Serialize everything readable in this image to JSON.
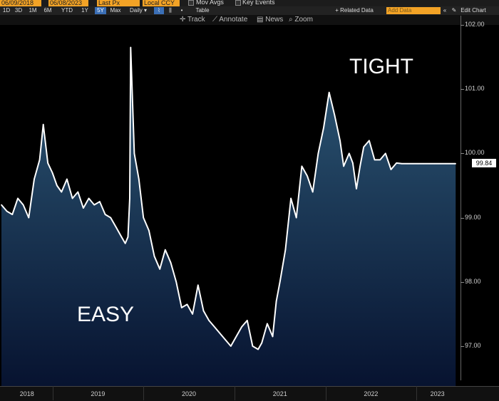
{
  "toolbar": {
    "date_start": "06/09/2018",
    "date_end": "06/08/2023",
    "field_px": "Last Px",
    "field_ccy": "Local CCY",
    "mov_avgs": "Mov Avgs",
    "key_events": "Key Events",
    "periods": [
      "1D",
      "3D",
      "1M",
      "6M",
      "YTD",
      "1Y",
      "5Y",
      "Max"
    ],
    "active_period": "5Y",
    "frequency": "Daily",
    "table": "Table",
    "related_data": "+ Related Data",
    "add_data_placeholder": "Add Data",
    "edit_chart": "Edit Chart",
    "tools": [
      "Track",
      "Annotate",
      "News",
      "Zoom"
    ]
  },
  "annotations": {
    "tight": "TIGHT",
    "easy": "EASY"
  },
  "last_value": "99.84",
  "chart_data": {
    "type": "area",
    "title": "",
    "xlabel": "",
    "ylabel": "",
    "ylim": [
      96.6,
      102.2
    ],
    "yticks": [
      "102.00",
      "101.00",
      "100.00",
      "99.00",
      "98.00",
      "97.00"
    ],
    "xlabels": [
      "2018",
      "2019",
      "2020",
      "2021",
      "2022",
      "2023"
    ],
    "colors": {
      "line": "#ffffff",
      "fill_top": "#2e5a78",
      "fill_bottom": "#071330",
      "background": "#000000"
    },
    "x": [
      2018.44,
      2018.5,
      2018.56,
      2018.62,
      2018.68,
      2018.74,
      2018.8,
      2018.86,
      2018.9,
      2018.95,
      2019.0,
      2019.05,
      2019.1,
      2019.16,
      2019.22,
      2019.28,
      2019.34,
      2019.4,
      2019.46,
      2019.52,
      2019.58,
      2019.64,
      2019.7,
      2019.76,
      2019.8,
      2019.83,
      2019.85,
      2019.86,
      2019.9,
      2019.95,
      2020.0,
      2020.06,
      2020.12,
      2020.18,
      2020.24,
      2020.3,
      2020.36,
      2020.42,
      2020.48,
      2020.54,
      2020.6,
      2020.66,
      2020.72,
      2020.78,
      2020.84,
      2020.9,
      2020.96,
      2021.02,
      2021.08,
      2021.14,
      2021.2,
      2021.26,
      2021.3,
      2021.36,
      2021.42,
      2021.46,
      2021.5,
      2021.56,
      2021.62,
      2021.68,
      2021.74,
      2021.8,
      2021.86,
      2021.92,
      2021.98,
      2022.04,
      2022.1,
      2022.16,
      2022.2,
      2022.26,
      2022.3,
      2022.34,
      2022.38,
      2022.42,
      2022.48,
      2022.54,
      2022.6,
      2022.66,
      2022.72,
      2022.78,
      2022.84,
      2022.9,
      2022.96,
      2023.02,
      2023.08,
      2023.14,
      2023.2,
      2023.26,
      2023.32,
      2023.38,
      2023.43
    ],
    "values": [
      99.2,
      99.1,
      99.05,
      99.3,
      99.2,
      99.0,
      99.6,
      99.9,
      100.45,
      99.85,
      99.7,
      99.5,
      99.4,
      99.6,
      99.3,
      99.4,
      99.15,
      99.3,
      99.2,
      99.25,
      99.05,
      99.0,
      98.85,
      98.7,
      98.6,
      98.7,
      99.3,
      101.65,
      100.0,
      99.6,
      99.0,
      98.8,
      98.4,
      98.2,
      98.5,
      98.3,
      98.0,
      97.6,
      97.65,
      97.5,
      97.95,
      97.55,
      97.4,
      97.3,
      97.2,
      97.1,
      97.0,
      97.15,
      97.3,
      97.4,
      97.0,
      96.95,
      97.05,
      97.35,
      97.15,
      97.7,
      98.0,
      98.5,
      99.3,
      99.0,
      99.8,
      99.65,
      99.4,
      100.0,
      100.4,
      100.95,
      100.6,
      100.2,
      99.8,
      100.0,
      99.85,
      99.45,
      99.8,
      100.1,
      100.2,
      99.9,
      99.9,
      100.0,
      99.75,
      99.85,
      99.84,
      99.84,
      99.84,
      99.84,
      99.84,
      99.84,
      99.84,
      99.84,
      99.84,
      99.84,
      99.84
    ]
  }
}
